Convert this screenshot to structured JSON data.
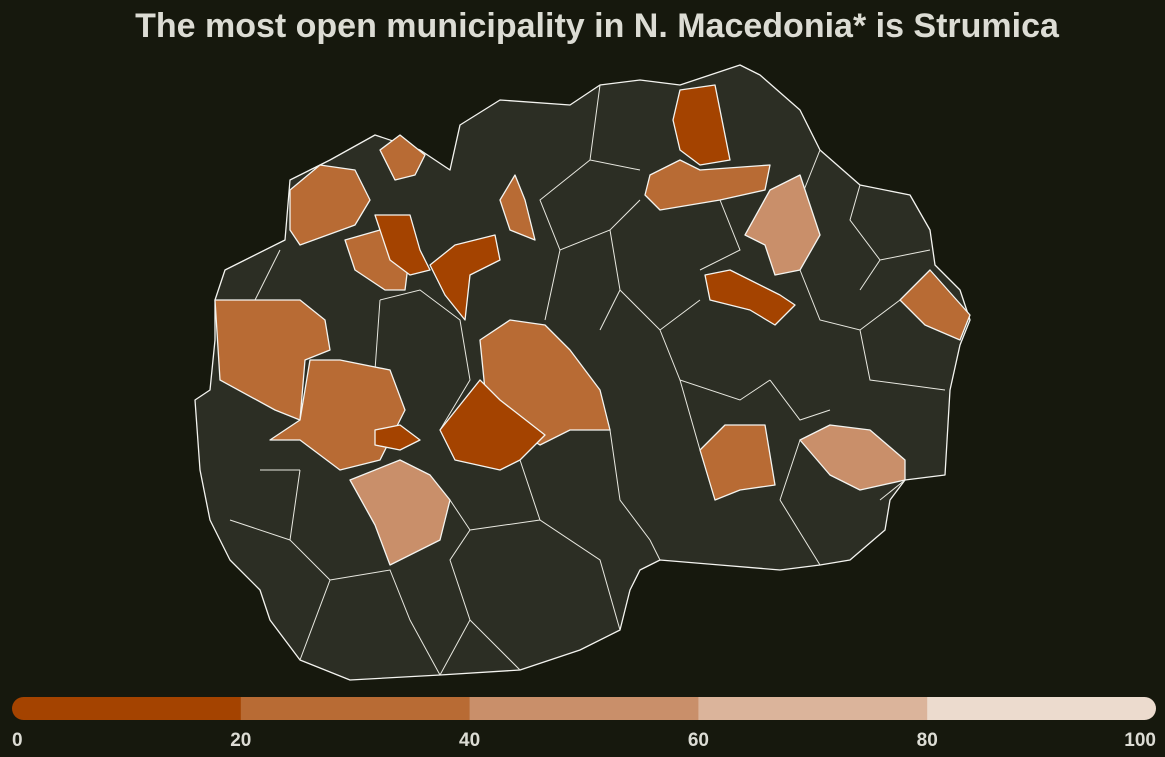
{
  "title": "The most open municipality in N. Macedonia* is Strumica",
  "legend": {
    "ticks": [
      0,
      20,
      40,
      60,
      80,
      100
    ],
    "colors": [
      "#a44300",
      "#b86b34",
      "#c98f6a",
      "#dbb49b",
      "#ecdbce"
    ]
  }
}
